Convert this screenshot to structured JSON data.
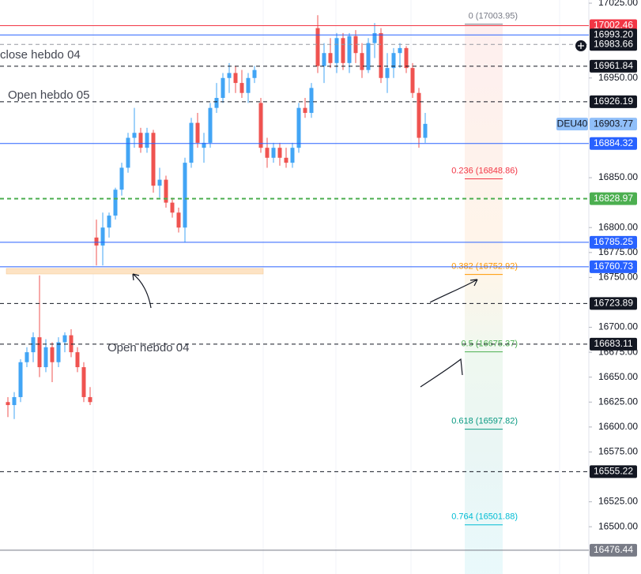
{
  "chart_data": {
    "type": "candlestick",
    "ylim": [
      16452.6,
      17028.2
    ],
    "yticks": [
      {
        "value": 17025,
        "label": "17025.00"
      },
      {
        "value": 16950,
        "label": "16950.00"
      },
      {
        "value": 16850,
        "label": "16850.00"
      },
      {
        "value": 16800,
        "label": "16800.00"
      },
      {
        "value": 16775,
        "label": "16775.00"
      },
      {
        "value": 16750,
        "label": "16750.00"
      },
      {
        "value": 16700,
        "label": "16700.00"
      },
      {
        "value": 16675,
        "label": "16675.00"
      },
      {
        "value": 16650,
        "label": "16650.00"
      },
      {
        "value": 16625,
        "label": "16625.00"
      },
      {
        "value": 16600,
        "label": "16600.00"
      },
      {
        "value": 16575,
        "label": "16575.00"
      },
      {
        "value": 16525,
        "label": "16525.00"
      },
      {
        "value": 16500,
        "label": "16500.00"
      }
    ],
    "up_color": "#42a5f5",
    "down_color": "#ef5350",
    "open": [
      16625,
      16622,
      16630,
      16665,
      16675,
      16690,
      16660,
      16680,
      16665,
      16685,
      16692,
      16675,
      16660,
      16630,
      16790,
      16782,
      16800,
      16812,
      16838,
      16860,
      16890,
      16895,
      16880,
      16895,
      16842,
      16848,
      16825,
      16815,
      16800,
      16865,
      16905,
      16880,
      16885,
      16920,
      16930,
      16950,
      16955,
      16945,
      16935,
      16950,
      16925,
      16880,
      16870,
      16880,
      16870,
      16865,
      16880,
      16920,
      16915,
      17000,
      16962,
      16975,
      16965,
      16990,
      16965,
      16992,
      16975,
      16958,
      16985,
      16995,
      16950,
      16960,
      16975,
      16980,
      16960,
      16935,
      16890
    ],
    "high": [
      16630,
      16635,
      16668,
      16680,
      16695,
      16752,
      16688,
      16685,
      16690,
      16695,
      16698,
      16680,
      16665,
      16640,
      16808,
      16815,
      16815,
      16840,
      16865,
      16895,
      16920,
      16900,
      16900,
      16898,
      16860,
      16852,
      16830,
      16820,
      16870,
      16910,
      16915,
      16895,
      16925,
      16945,
      16955,
      16965,
      16962,
      16958,
      16955,
      16962,
      16930,
      16890,
      16885,
      16885,
      16880,
      16885,
      16925,
      16930,
      16945,
      17013,
      16985,
      16990,
      16995,
      16995,
      16995,
      16998,
      16985,
      16990,
      17005,
      17000,
      16975,
      16980,
      16985,
      16982,
      16965,
      16940,
      16915
    ],
    "low": [
      16610,
      16608,
      16625,
      16660,
      16665,
      16650,
      16655,
      16645,
      16660,
      16675,
      16670,
      16655,
      16625,
      16622,
      16762,
      16762,
      16790,
      16808,
      16832,
      16855,
      16880,
      16875,
      16875,
      16835,
      16830,
      16820,
      16810,
      16795,
      16785,
      16860,
      16880,
      16865,
      16880,
      16915,
      16925,
      16935,
      16935,
      16930,
      16925,
      16945,
      16875,
      16860,
      16865,
      16862,
      16860,
      16860,
      16875,
      16910,
      16910,
      16955,
      16945,
      16960,
      16955,
      16958,
      16955,
      16965,
      16950,
      16955,
      16970,
      16945,
      16935,
      16950,
      16960,
      16955,
      16930,
      16880,
      16885
    ],
    "close": [
      16622,
      16630,
      16665,
      16675,
      16690,
      16660,
      16680,
      16665,
      16685,
      16692,
      16675,
      16660,
      16630,
      16625,
      16782,
      16800,
      16812,
      16838,
      16860,
      16890,
      16895,
      16880,
      16895,
      16842,
      16848,
      16825,
      16815,
      16800,
      16865,
      16905,
      16885,
      16885,
      16920,
      16930,
      16950,
      16955,
      16945,
      16935,
      16950,
      16958,
      16880,
      16870,
      16880,
      16870,
      16865,
      16880,
      16920,
      16915,
      16940,
      16962,
      16975,
      16965,
      16990,
      16965,
      16992,
      16975,
      16958,
      16985,
      16995,
      16950,
      16960,
      16975,
      16980,
      16960,
      16935,
      16890,
      16904
    ],
    "levels": [
      {
        "value": 17002.46,
        "label": "17002.46",
        "color": "#f23645",
        "style": "solid",
        "box": "#f23645",
        "text_color": "#ffffff"
      },
      {
        "value": 16993.2,
        "label": "16993.20",
        "color": "#2962ff",
        "style": "solid",
        "box": "#131722",
        "text_color": "#ffffff"
      },
      {
        "value": 16983.66,
        "label": "16983.66",
        "color": "#9598a1",
        "style": "dashed",
        "box": "#131722",
        "text_color": "#ffffff"
      },
      {
        "value": 16961.84,
        "label": "16961.84",
        "color": "#131722",
        "style": "dashed",
        "box": "#131722",
        "text_color": "#ffffff"
      },
      {
        "value": 16926.19,
        "label": "16926.19",
        "color": "#131722",
        "style": "dashed",
        "box": "#131722",
        "text_color": "#ffffff"
      },
      {
        "symbol": "DEU40",
        "value": 16903.77,
        "label": "16903.77",
        "color": "#90bff9",
        "style": "none",
        "box": "#90bff9",
        "text_color": "#131722"
      },
      {
        "value": 16884.32,
        "label": "16884.32",
        "color": "#2962ff",
        "style": "solid",
        "box": "#2962ff",
        "text_color": "#ffffff"
      },
      {
        "value": 16828.97,
        "label": "16828.97",
        "color": "#4caf50",
        "style": "dashed",
        "box": "#4caf50",
        "text_color": "#ffffff"
      },
      {
        "value": 16785.25,
        "label": "16785.25",
        "color": "#2962ff",
        "style": "solid",
        "box": "#2962ff",
        "text_color": "#ffffff"
      },
      {
        "value": 16760.73,
        "label": "16760.73",
        "color": "#2962ff",
        "style": "solid",
        "box": "#2962ff",
        "text_color": "#ffffff"
      },
      {
        "value": 16723.89,
        "label": "16723.89",
        "color": "#131722",
        "style": "dashed",
        "box": "#131722",
        "text_color": "#ffffff"
      },
      {
        "value": 16683.11,
        "label": "16683.11",
        "color": "#131722",
        "style": "dashed",
        "box": "#131722",
        "text_color": "#ffffff"
      },
      {
        "value": 16555.22,
        "label": "16555.22",
        "color": "#131722",
        "style": "dashed",
        "box": "#131722",
        "text_color": "#ffffff"
      },
      {
        "value": 16476.44,
        "label": "16476.44",
        "color": "#787b86",
        "style": "solid",
        "box": "#787b86",
        "text_color": "#ffffff"
      }
    ],
    "fib_levels": [
      {
        "value": 17003.95,
        "label": "0 (17003.95)",
        "color": "#787b86"
      },
      {
        "value": 16848.86,
        "label": "0.236 (16848.86)",
        "color": "#f23645"
      },
      {
        "value": 16752.92,
        "label": "0.382 (16752.92)",
        "color": "#ff9800"
      },
      {
        "value": 16675.37,
        "label": "0.5 (16675.37)",
        "color": "#4caf50"
      },
      {
        "value": 16597.82,
        "label": "0.618 (16597.82)",
        "color": "#089981"
      },
      {
        "value": 16501.88,
        "label": "0.764 (16501.88)",
        "color": "#00bcd4"
      }
    ],
    "annotations": [
      "close hebdo 04",
      "Open hebdo 05",
      "Open hebdo 04"
    ]
  }
}
